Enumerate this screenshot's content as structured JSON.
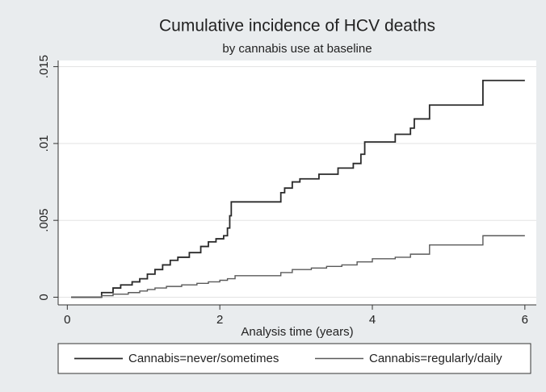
{
  "chart_data": {
    "type": "step",
    "title": "Cumulative incidence of HCV deaths",
    "subtitle": "by cannabis use at baseline",
    "x_label": "Analysis time (years)",
    "xlim": [
      -0.12,
      6.15
    ],
    "xticks": [
      0,
      2,
      4,
      6
    ],
    "ylim": [
      -0.0005,
      0.0154
    ],
    "yticks": [
      0,
      {
        "value": 0.005,
        "label": ".005"
      },
      {
        "value": 0.01,
        "label": ".01"
      },
      {
        "value": 0.015,
        "label": ".015"
      }
    ],
    "grid": true,
    "legend": "bottom",
    "series": [
      {
        "name": "Cannabis=never/sometimes",
        "color": "#2a2a2a",
        "x": [
          0.05,
          0.45,
          0.6,
          0.7,
          0.85,
          0.95,
          1.05,
          1.15,
          1.25,
          1.35,
          1.45,
          1.6,
          1.75,
          1.85,
          1.95,
          2.05,
          2.1,
          2.13,
          2.15,
          2.8,
          2.85,
          2.95,
          3.05,
          3.3,
          3.55,
          3.75,
          3.85,
          3.9,
          4.3,
          4.5,
          4.55,
          4.75,
          5.45,
          6.0
        ],
        "values": [
          0,
          0.0003,
          0.0006,
          0.0008,
          0.001,
          0.0012,
          0.0015,
          0.0018,
          0.0021,
          0.0024,
          0.0026,
          0.0029,
          0.0033,
          0.0036,
          0.0038,
          0.004,
          0.0045,
          0.0053,
          0.0062,
          0.0068,
          0.0071,
          0.0075,
          0.0077,
          0.008,
          0.0084,
          0.0087,
          0.0093,
          0.0101,
          0.0106,
          0.011,
          0.0116,
          0.0125,
          0.0141,
          0.0141
        ]
      },
      {
        "name": "Cannabis=regularly/daily",
        "color": "#5a5a5a",
        "x": [
          0.05,
          0.45,
          0.6,
          0.8,
          0.95,
          1.05,
          1.15,
          1.3,
          1.5,
          1.7,
          1.85,
          2.0,
          2.1,
          2.2,
          2.8,
          2.95,
          3.2,
          3.4,
          3.6,
          3.8,
          4.0,
          4.3,
          4.5,
          4.75,
          5.45,
          6.0
        ],
        "values": [
          0,
          0.0001,
          0.0002,
          0.0003,
          0.0004,
          0.0005,
          0.0006,
          0.0007,
          0.0008,
          0.0009,
          0.001,
          0.0011,
          0.0012,
          0.0014,
          0.0016,
          0.0018,
          0.0019,
          0.002,
          0.0021,
          0.0023,
          0.0025,
          0.0026,
          0.0028,
          0.0034,
          0.004,
          0.004
        ]
      }
    ]
  }
}
